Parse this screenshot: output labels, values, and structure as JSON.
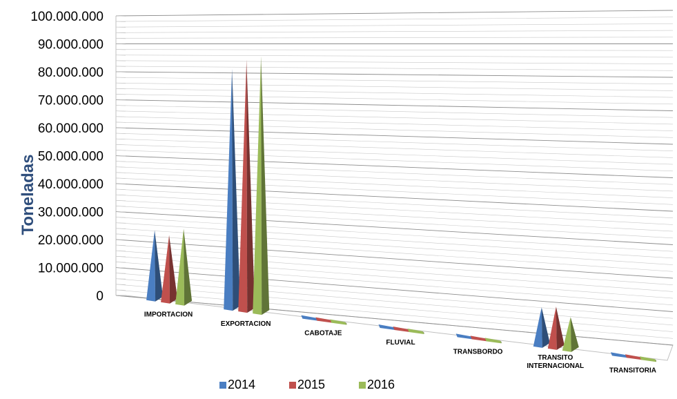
{
  "chart_data": {
    "type": "bar",
    "style": "3d-cone",
    "title": "",
    "xlabel": "",
    "ylabel": "Toneladas",
    "ylim": [
      0,
      100000000
    ],
    "y_ticks": [
      "0",
      "10.000.000",
      "20.000.000",
      "30.000.000",
      "40.000.000",
      "50.000.000",
      "60.000.000",
      "70.000.000",
      "80.000.000",
      "90.000.000",
      "100.000.000"
    ],
    "grid": true,
    "legend_position": "bottom",
    "categories": [
      [
        "IMPORTACION"
      ],
      [
        "EXPORTACION"
      ],
      [
        "CABOTAJE"
      ],
      [
        "FLUVIAL"
      ],
      [
        "TRANSBORDO"
      ],
      [
        "TRANSITO",
        "INTERNACIONAL"
      ],
      [
        "TRANSITORIA"
      ]
    ],
    "series": [
      {
        "name": "2014",
        "color": "#4a7ec2",
        "values": [
          24000000,
          85000000,
          300000,
          300000,
          300000,
          13000000,
          300000
        ]
      },
      {
        "name": "2015",
        "color": "#c0504d",
        "values": [
          23000000,
          89000000,
          300000,
          300000,
          300000,
          14000000,
          300000
        ]
      },
      {
        "name": "2016",
        "color": "#9bbb59",
        "values": [
          26000000,
          91000000,
          300000,
          300000,
          300000,
          11000000,
          300000
        ]
      }
    ],
    "colors": {
      "axis_title": "#2f4e7c",
      "grid": "#a6a6a6"
    }
  }
}
